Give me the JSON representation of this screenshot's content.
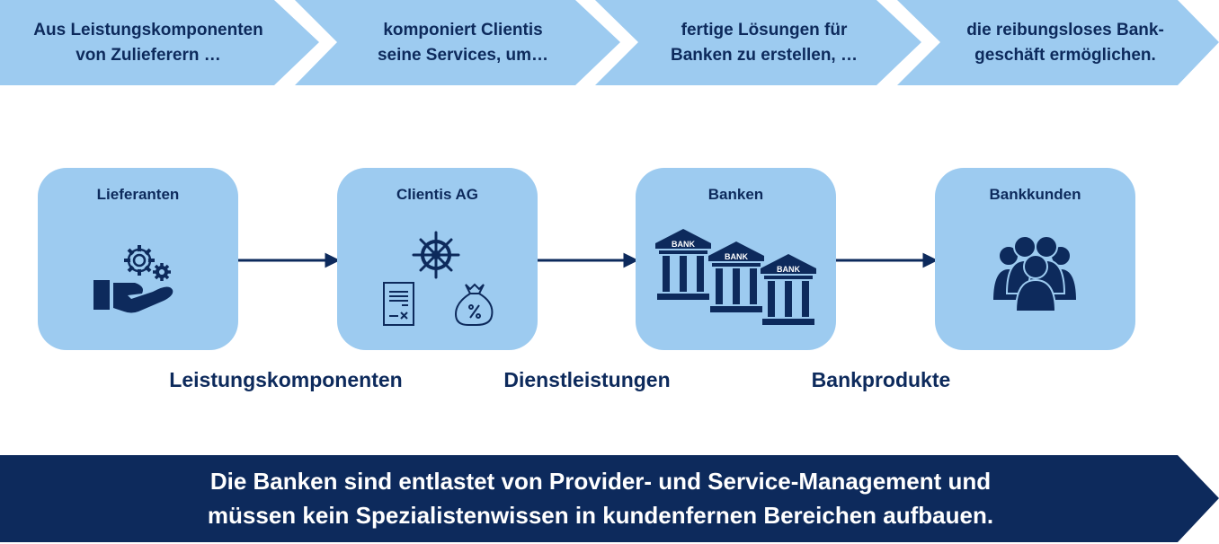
{
  "colors": {
    "light_blue": "#9dcbf0",
    "navy": "#0d2a5c",
    "white": "#ffffff"
  },
  "chevrons": [
    {
      "line1": "Aus Leistungskomponenten",
      "line2": "von Zulieferern …"
    },
    {
      "line1": "komponiert Clientis",
      "line2": "seine Services, um…"
    },
    {
      "line1": "fertige Lösungen für",
      "line2": "Banken zu erstellen, …"
    },
    {
      "line1": "die reibungsloses Bank-",
      "line2": "geschäft ermöglichen."
    }
  ],
  "boxes": [
    {
      "title": "Lieferanten",
      "icon": "hand-gears-icon"
    },
    {
      "title": "Clientis AG",
      "icon": "ship-wheel-document-moneybag-icon"
    },
    {
      "title": "Banken",
      "icon": "bank-buildings-icon",
      "bank_label": "BANK"
    },
    {
      "title": "Bankkunden",
      "icon": "people-group-icon"
    }
  ],
  "flow_labels": [
    "Leistungskomponenten",
    "Dienstleistungen",
    "Bankprodukte"
  ],
  "banner": {
    "line1": "Die Banken sind entlastet von Provider- und Service-Management und",
    "line2": "müssen kein Spezialistenwissen in kundenfernen Bereichen aufbauen."
  }
}
